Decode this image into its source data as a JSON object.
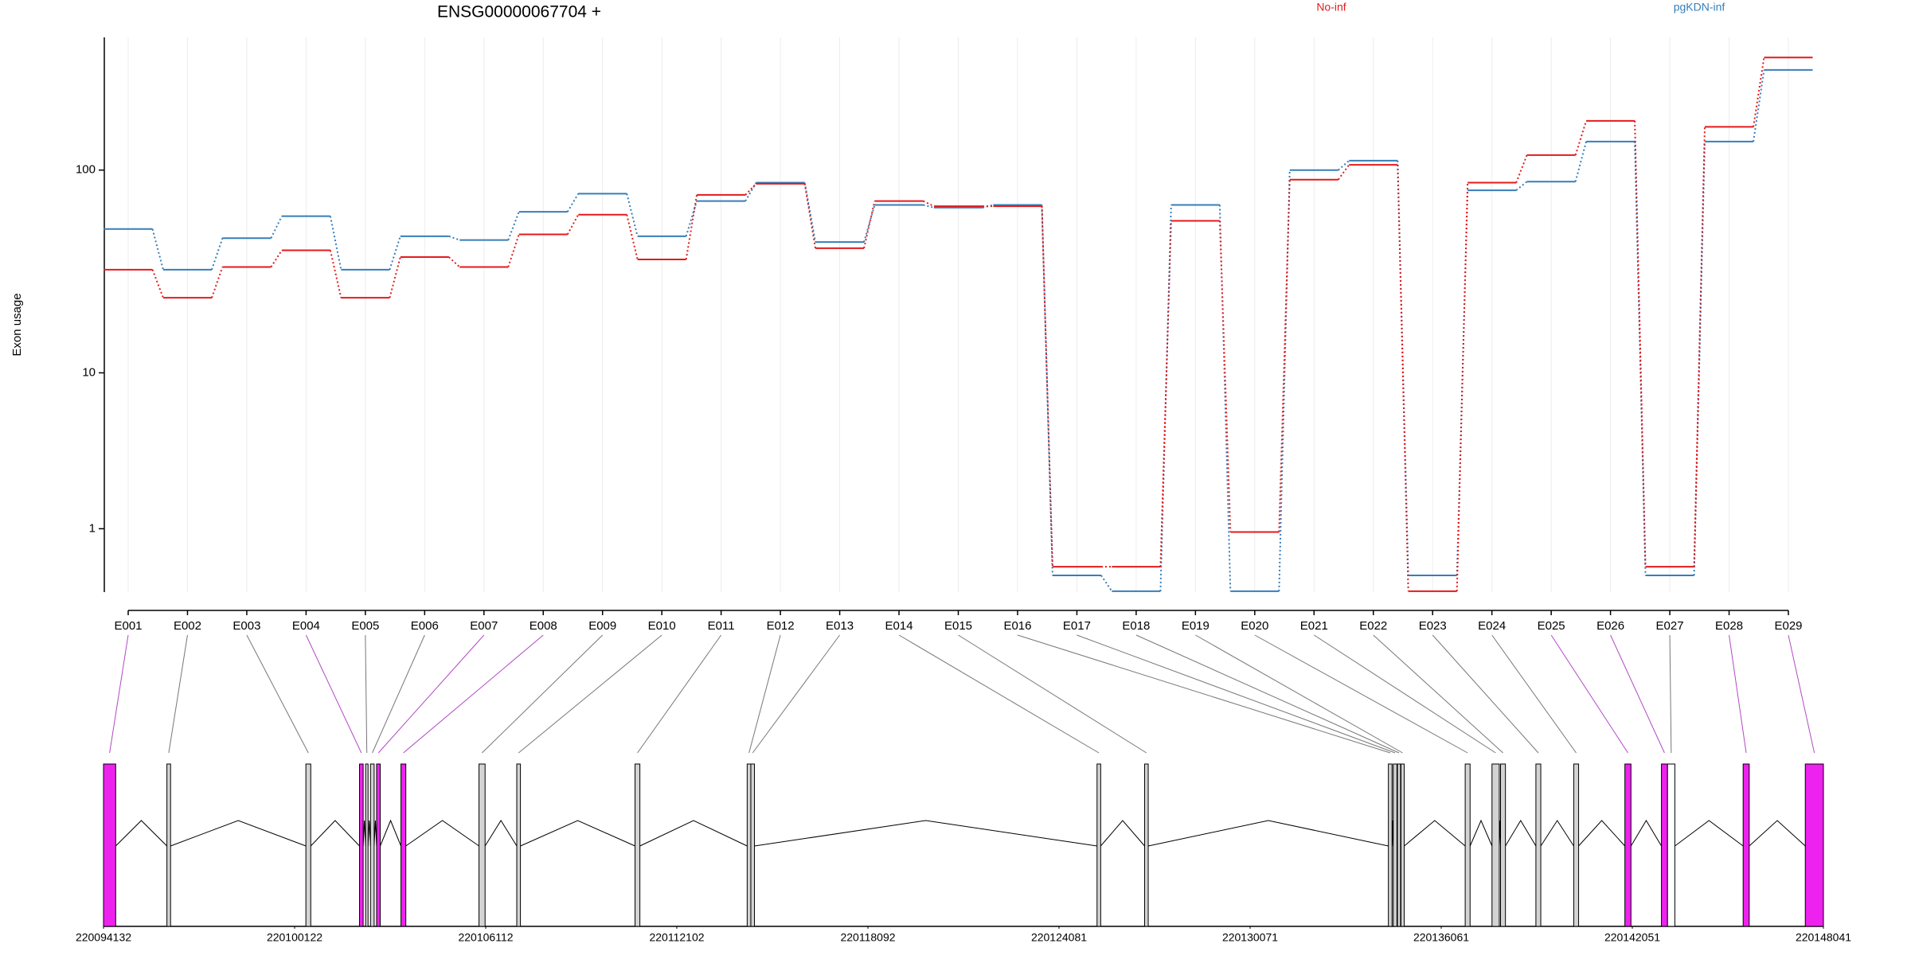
{
  "chart_data": {
    "type": "line",
    "title": "ENSG00000067704 +",
    "y_label": "Exon usage",
    "y_scale": "log1p",
    "categories": [
      "E001",
      "E002",
      "E003",
      "E004",
      "E005",
      "E006",
      "E007",
      "E008",
      "E009",
      "E010",
      "E011",
      "E012",
      "E013",
      "E014",
      "E015",
      "E016",
      "E017",
      "E018",
      "E019",
      "E020",
      "E021",
      "E022",
      "E023",
      "E024",
      "E025",
      "E026",
      "E027",
      "E028",
      "E029"
    ],
    "series": [
      {
        "name": "No-inf",
        "color": "#e41a1c",
        "values": [
          33,
          24,
          34,
          41,
          24,
          38,
          34,
          49,
          61,
          37,
          76,
          86,
          42,
          71,
          67,
          67,
          0.32,
          0.32,
          57,
          0.93,
          90,
          106,
          0.01,
          87,
          118,
          172,
          0.32,
          161,
          345
        ]
      },
      {
        "name": "pgKDN-inf",
        "color": "#377eb8",
        "values": [
          52,
          33,
          47,
          60,
          33,
          48,
          46,
          63,
          77,
          48,
          71,
          87,
          45,
          68,
          66,
          68,
          0.2,
          0.01,
          68,
          0.01,
          100,
          111,
          0.2,
          80,
          88,
          137,
          0.2,
          137,
          301
        ]
      }
    ],
    "ylim": [
      0,
      430
    ],
    "yticks": [
      1,
      10,
      100
    ],
    "grid": true,
    "gene_model": {
      "xlim": [
        220094132,
        220148041
      ],
      "xticks": [
        220094132,
        220100122,
        220106112,
        220112102,
        220118092,
        220124081,
        220130071,
        220136061,
        220142051,
        220148041
      ],
      "exon_starts": [
        220094132,
        220096119,
        220100475,
        220102156,
        220102347,
        220102500,
        220102691,
        220103455,
        220105901,
        220107085,
        220110792,
        220114307,
        220114422,
        220125273,
        220126765,
        220134405,
        220134558,
        220134690,
        220134800,
        220136813,
        220137653,
        220137921,
        220139029,
        220140215,
        220141818,
        220142964,
        220143155,
        220145525,
        220147473
      ],
      "exon_ends": [
        220094514,
        220096234,
        220100628,
        220102271,
        220102424,
        220102615,
        220102806,
        220103608,
        220106092,
        220107200,
        220110944,
        220114422,
        220114536,
        220125388,
        220126878,
        220134520,
        220134673,
        220134787,
        220134902,
        220136966,
        220137882,
        220138074,
        220139182,
        220140368,
        220142009,
        220143155,
        220143385,
        220145716,
        220148041
      ],
      "exon_colors": [
        "#ee22ee",
        "#d3d3d3",
        "#d3d3d3",
        "#ee22ee",
        "#d3d3d3",
        "#d3d3d3",
        "#ee22ee",
        "#ee22ee",
        "#d3d3d3",
        "#d3d3d3",
        "#d3d3d3",
        "#d3d3d3",
        "#d3d3d3",
        "#d3d3d3",
        "#d3d3d3",
        "#d3d3d3",
        "#d3d3d3",
        "#d3d3d3",
        "#d3d3d3",
        "#d3d3d3",
        "#d3d3d3",
        "#d3d3d3",
        "#d3d3d3",
        "#d3d3d3",
        "#ee22ee",
        "#ee22ee",
        "#ffffff",
        "#ee22ee",
        "#ee22ee"
      ]
    }
  }
}
